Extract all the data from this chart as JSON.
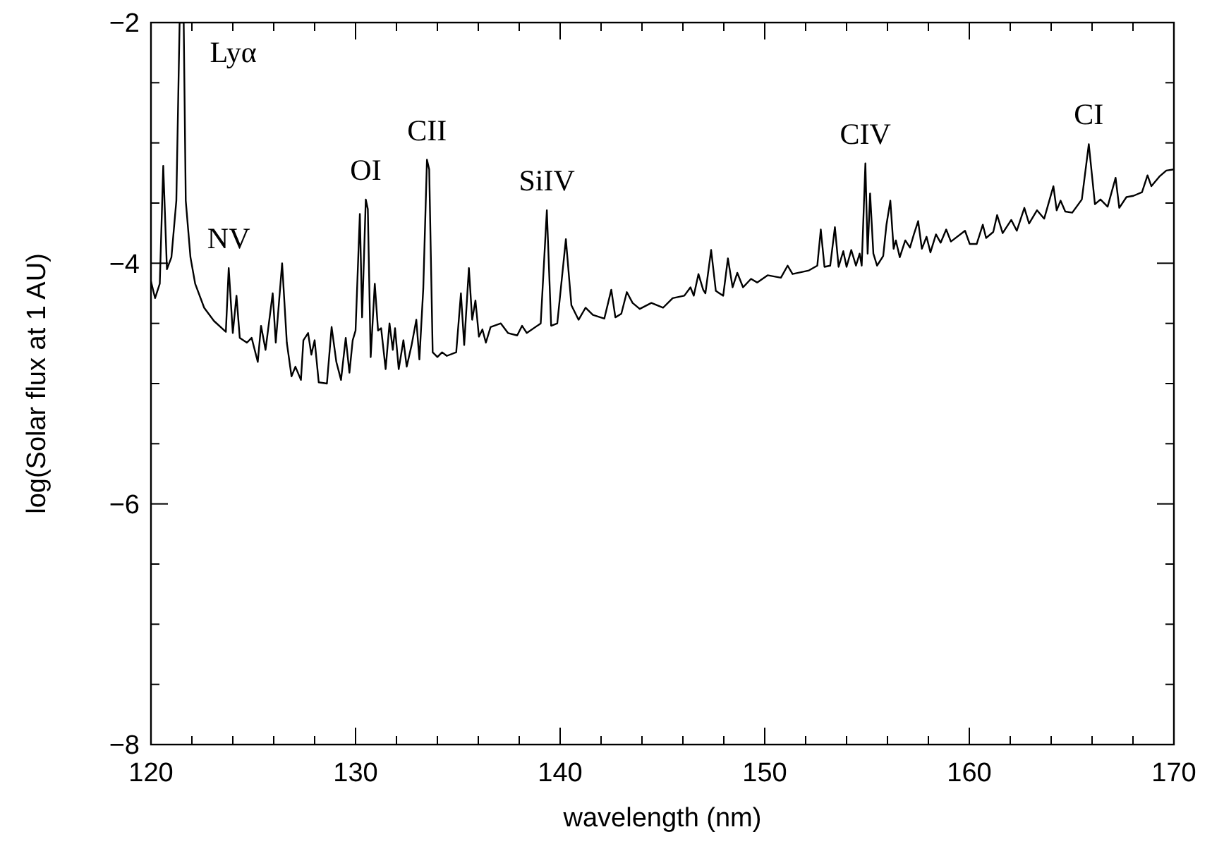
{
  "chart_data": {
    "type": "line",
    "xlabel": "wavelength (nm)",
    "ylabel": "log(Solar flux at 1 AU)",
    "xlim": [
      120,
      170
    ],
    "ylim": [
      -8,
      -2
    ],
    "xticks": [
      120,
      {
        "value": 122,
        "label": null
      },
      {
        "value": 124,
        "label": null
      },
      {
        "value": 126,
        "label": null
      },
      {
        "value": 128,
        "label": null
      },
      130,
      {
        "value": 132,
        "label": null
      },
      {
        "value": 134,
        "label": null
      },
      {
        "value": 136,
        "label": null
      },
      {
        "value": 138,
        "label": null
      },
      140,
      {
        "value": 142,
        "label": null
      },
      {
        "value": 144,
        "label": null
      },
      {
        "value": 146,
        "label": null
      },
      {
        "value": 148,
        "label": null
      },
      150,
      {
        "value": 152,
        "label": null
      },
      {
        "value": 154,
        "label": null
      },
      {
        "value": 156,
        "label": null
      },
      {
        "value": 158,
        "label": null
      },
      160,
      {
        "value": 162,
        "label": null
      },
      {
        "value": 164,
        "label": null
      },
      {
        "value": 166,
        "label": null
      },
      {
        "value": 168,
        "label": null
      },
      170
    ],
    "yticks": [
      {
        "value": -2,
        "label": "−2"
      },
      {
        "value": -2.5,
        "label": null
      },
      {
        "value": -3,
        "label": null
      },
      {
        "value": -3.5,
        "label": null
      },
      {
        "value": -4,
        "label": "−4"
      },
      {
        "value": -4.5,
        "label": null
      },
      {
        "value": -5,
        "label": null
      },
      {
        "value": -5.5,
        "label": null
      },
      {
        "value": -6,
        "label": "−6"
      },
      {
        "value": -6.5,
        "label": null
      },
      {
        "value": -7,
        "label": null
      },
      {
        "value": -7.5,
        "label": null
      },
      {
        "value": -8,
        "label": "−8"
      }
    ],
    "grid": false,
    "marker": "none",
    "line_style": "solid",
    "series": [
      {
        "color": "#000000",
        "x": [
          120,
          120.2,
          120.43,
          120.6,
          120.78,
          121.0,
          121.24,
          121.4,
          121.6,
          121.7,
          121.93,
          122.16,
          122.6,
          123.08,
          123.66,
          123.8,
          124.0,
          124.18,
          124.34,
          124.69,
          124.92,
          125.22,
          125.38,
          125.6,
          125.95,
          126.1,
          126.41,
          126.64,
          126.87,
          127.06,
          127.33,
          127.45,
          127.68,
          127.84,
          128.0,
          128.2,
          128.6,
          128.83,
          129.06,
          129.29,
          129.52,
          129.7,
          129.86,
          130.0,
          130.21,
          130.32,
          130.5,
          130.6,
          130.74,
          130.94,
          131.1,
          131.25,
          131.47,
          131.66,
          131.82,
          131.93,
          132.11,
          132.34,
          132.5,
          132.74,
          132.97,
          133.12,
          133.31,
          133.49,
          133.6,
          133.77,
          134.0,
          134.23,
          134.46,
          134.92,
          135.15,
          135.31,
          135.54,
          135.7,
          135.86,
          136.03,
          136.2,
          136.37,
          136.6,
          137.1,
          137.45,
          137.9,
          138.14,
          138.37,
          139.05,
          139.35,
          139.56,
          139.86,
          140.28,
          140.55,
          140.9,
          141.24,
          141.6,
          142.16,
          142.5,
          142.7,
          142.99,
          143.26,
          143.54,
          143.89,
          144.46,
          145.03,
          145.5,
          146.07,
          146.37,
          146.53,
          146.76,
          146.99,
          147.1,
          147.38,
          147.61,
          147.97,
          148.2,
          148.43,
          148.66,
          148.94,
          149.33,
          149.63,
          150.14,
          150.79,
          151.12,
          151.36,
          152.16,
          152.57,
          152.74,
          152.92,
          153.2,
          153.43,
          153.61,
          153.84,
          154.0,
          154.23,
          154.46,
          154.64,
          154.74,
          154.92,
          155.03,
          155.15,
          155.31,
          155.49,
          155.79,
          155.95,
          156.14,
          156.3,
          156.41,
          156.6,
          156.87,
          157.1,
          157.29,
          157.5,
          157.68,
          157.91,
          158.1,
          158.37,
          158.6,
          158.87,
          159.1,
          159.79,
          160.02,
          160.36,
          160.66,
          160.82,
          161.17,
          161.36,
          161.63,
          162.05,
          162.32,
          162.69,
          162.92,
          163.31,
          163.66,
          164.11,
          164.27,
          164.46,
          164.69,
          165.03,
          165.5,
          165.84,
          166.14,
          166.41,
          166.76,
          167.15,
          167.33,
          167.68,
          168.02,
          168.44,
          168.71,
          168.9,
          169.29,
          169.63,
          170
        ],
        "values": [
          -4.15,
          -4.29,
          -4.17,
          -3.19,
          -4.05,
          -3.95,
          -3.48,
          -2,
          -2,
          -3.48,
          -3.95,
          -4.17,
          -4.37,
          -4.48,
          -4.57,
          -4.04,
          -4.58,
          -4.27,
          -4.62,
          -4.66,
          -4.62,
          -4.82,
          -4.52,
          -4.72,
          -4.25,
          -4.66,
          -4.0,
          -4.66,
          -4.94,
          -4.86,
          -4.97,
          -4.64,
          -4.58,
          -4.76,
          -4.64,
          -4.99,
          -5.0,
          -4.53,
          -4.82,
          -4.97,
          -4.62,
          -4.91,
          -4.64,
          -4.56,
          -3.59,
          -4.45,
          -3.47,
          -3.55,
          -4.78,
          -4.17,
          -4.56,
          -4.54,
          -4.88,
          -4.5,
          -4.72,
          -4.54,
          -4.88,
          -4.64,
          -4.86,
          -4.68,
          -4.47,
          -4.8,
          -4.21,
          -3.14,
          -3.22,
          -4.74,
          -4.78,
          -4.74,
          -4.77,
          -4.74,
          -4.25,
          -4.68,
          -4.04,
          -4.47,
          -4.31,
          -4.61,
          -4.55,
          -4.66,
          -4.53,
          -4.5,
          -4.58,
          -4.6,
          -4.52,
          -4.58,
          -4.5,
          -3.56,
          -4.52,
          -4.5,
          -3.8,
          -4.35,
          -4.47,
          -4.37,
          -4.43,
          -4.46,
          -4.22,
          -4.45,
          -4.42,
          -4.24,
          -4.33,
          -4.38,
          -4.33,
          -4.37,
          -4.29,
          -4.27,
          -4.2,
          -4.27,
          -4.09,
          -4.22,
          -4.25,
          -3.89,
          -4.23,
          -4.27,
          -3.96,
          -4.2,
          -4.08,
          -4.2,
          -4.13,
          -4.16,
          -4.1,
          -4.12,
          -4.02,
          -4.09,
          -4.06,
          -4.02,
          -3.72,
          -4.03,
          -4.02,
          -3.7,
          -4.03,
          -3.9,
          -4.03,
          -3.89,
          -4.02,
          -3.92,
          -4.02,
          -3.17,
          -3.92,
          -3.42,
          -3.92,
          -4.02,
          -3.94,
          -3.68,
          -3.48,
          -3.88,
          -3.81,
          -3.95,
          -3.81,
          -3.87,
          -3.76,
          -3.65,
          -3.88,
          -3.78,
          -3.91,
          -3.76,
          -3.83,
          -3.72,
          -3.82,
          -3.73,
          -3.84,
          -3.84,
          -3.68,
          -3.79,
          -3.74,
          -3.6,
          -3.75,
          -3.64,
          -3.73,
          -3.54,
          -3.67,
          -3.56,
          -3.63,
          -3.36,
          -3.56,
          -3.48,
          -3.57,
          -3.58,
          -3.47,
          -3.01,
          -3.51,
          -3.47,
          -3.53,
          -3.29,
          -3.54,
          -3.45,
          -3.44,
          -3.41,
          -3.27,
          -3.36,
          -3.28,
          -3.23,
          -3.22
        ]
      }
    ],
    "annotations": [
      {
        "text": "Lyα",
        "x": 121.5,
        "y": -2
      },
      {
        "text": "NV",
        "x": 123.8,
        "y": -4.04
      },
      {
        "text": "OI",
        "x": 130.5,
        "y": -3.47
      },
      {
        "text": "CII",
        "x": 133.49,
        "y": -3.14
      },
      {
        "text": "SiIV",
        "x": 139.35,
        "y": -3.56
      },
      {
        "text": "CIV",
        "x": 154.92,
        "y": -3.17
      },
      {
        "text": "CI",
        "x": 165.84,
        "y": -3.01
      }
    ]
  }
}
